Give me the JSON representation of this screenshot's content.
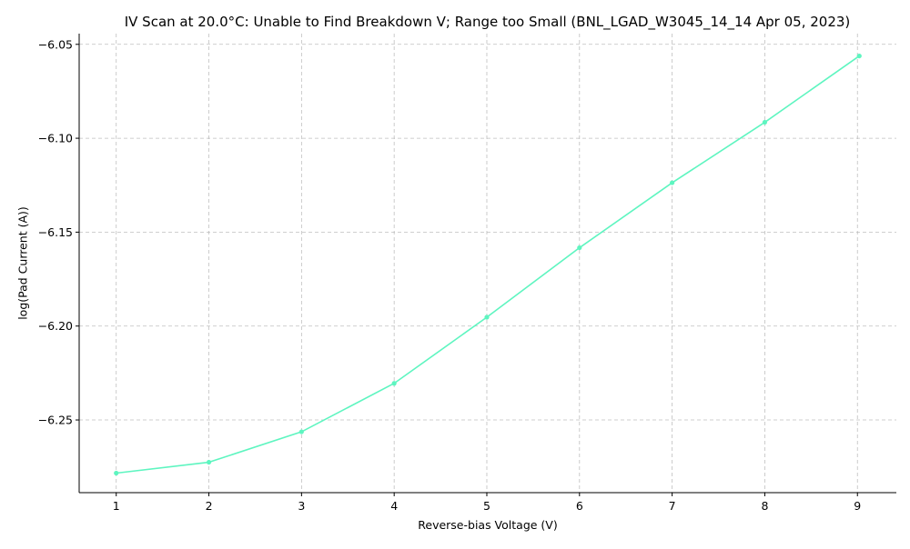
{
  "chart_data": {
    "type": "line",
    "title": "IV Scan at 20.0°C: Unable to Find Breakdown V; Range too Small (BNL_LGAD_W3045_14_14 Apr 05, 2023)",
    "xlabel": "Reverse-bias Voltage (V)",
    "ylabel": "log(Pad Current (A))",
    "xlim": [
      0.6,
      9.42
    ],
    "ylim": [
      -6.2887,
      -6.0443
    ],
    "x_ticks": [
      1,
      2,
      3,
      4,
      5,
      6,
      7,
      8,
      9
    ],
    "x_tick_labels": [
      "1",
      "2",
      "3",
      "4",
      "5",
      "6",
      "7",
      "8",
      "9"
    ],
    "y_ticks": [
      -6.25,
      -6.2,
      -6.15,
      -6.1,
      -6.05
    ],
    "y_tick_labels": [
      "−6.25",
      "−6.20",
      "−6.15",
      "−6.10",
      "−6.05"
    ],
    "grid": true,
    "legend": "none",
    "series": [
      {
        "color": "#5ef5c0",
        "marker": "circle",
        "x": [
          1.0,
          2.0,
          3.0,
          4.0,
          5.0,
          6.0,
          7.0,
          8.0,
          9.02
        ],
        "y": [
          -6.2783,
          -6.2725,
          -6.2563,
          -6.2305,
          -6.1953,
          -6.1583,
          -6.1237,
          -6.0915,
          -6.0562
        ]
      }
    ]
  }
}
